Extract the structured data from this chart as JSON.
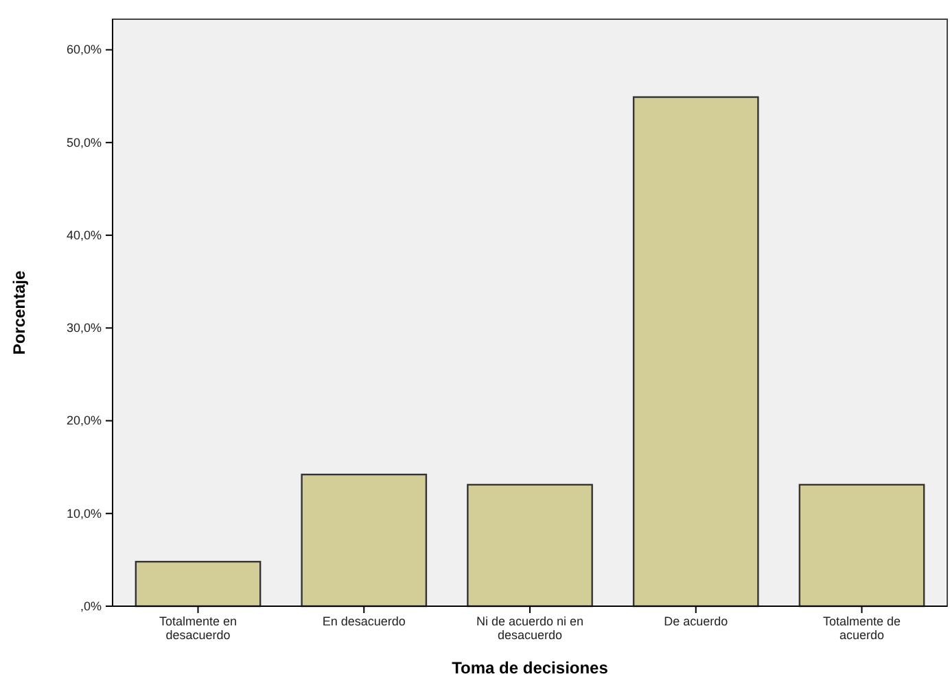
{
  "chart_data": {
    "type": "bar",
    "xlabel": "Toma de decisiones",
    "ylabel": "Porcentaje",
    "categories": [
      "Totalmente en desacuerdo",
      "En desacuerdo",
      "Ni de acuerdo ni en desacuerdo",
      "De acuerdo",
      "Totalmente de acuerdo"
    ],
    "values": [
      4.8,
      14.2,
      13.1,
      54.9,
      13.1
    ],
    "color": "#d3cd98",
    "ylim": [
      0,
      63.3
    ],
    "yticks": [
      {
        "value": 0,
        "label": ",0%"
      },
      {
        "value": 10,
        "label": "10,0%"
      },
      {
        "value": 20,
        "label": "20,0%"
      },
      {
        "value": 30,
        "label": "30,0%"
      },
      {
        "value": 40,
        "label": "40,0%"
      },
      {
        "value": 50,
        "label": "50,0%"
      },
      {
        "value": 60,
        "label": "60,0%"
      }
    ]
  }
}
